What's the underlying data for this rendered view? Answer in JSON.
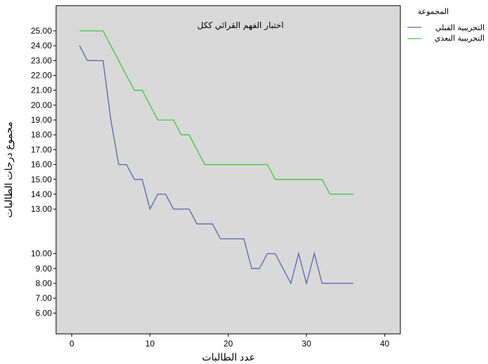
{
  "chart_data": {
    "type": "line",
    "title": "اختبار الفهم القرائي ككل",
    "xlabel": "عدد الطالبات",
    "ylabel": "مجموع درجات الطالبات",
    "xlim": [
      -2,
      42
    ],
    "ylim": [
      4.6,
      26.7
    ],
    "x_ticks": [
      0,
      10,
      20,
      30,
      40
    ],
    "y_ticks": [
      "25.00",
      "24.00",
      "23.00",
      "22.00",
      "21.00",
      "20.00",
      "19.00",
      "18.00",
      "17.00",
      "16.00",
      "15.00",
      "14.00",
      "13.00",
      "10.00",
      "9.00",
      "8.00",
      "7.00",
      "6.00"
    ],
    "legend_title": "المجموعة",
    "legend_position": "top-right",
    "grid": false,
    "series": [
      {
        "name": "التجريبية القبلي",
        "color": "#5765b0",
        "points": [
          [
            1,
            24
          ],
          [
            2,
            23
          ],
          [
            3,
            23
          ],
          [
            4,
            23
          ],
          [
            5,
            19
          ],
          [
            6,
            16
          ],
          [
            7,
            16
          ],
          [
            8,
            15
          ],
          [
            9,
            15
          ],
          [
            10,
            13
          ],
          [
            11,
            14
          ],
          [
            12,
            14
          ],
          [
            13,
            13
          ],
          [
            14,
            13
          ],
          [
            15,
            13
          ],
          [
            16,
            12
          ],
          [
            17,
            12
          ],
          [
            18,
            12
          ],
          [
            19,
            11
          ],
          [
            20,
            11
          ],
          [
            21,
            11
          ],
          [
            22,
            11
          ],
          [
            23,
            9
          ],
          [
            24,
            9
          ],
          [
            25,
            10
          ],
          [
            26,
            10
          ],
          [
            27,
            9
          ],
          [
            28,
            8
          ],
          [
            29,
            10
          ],
          [
            30,
            8
          ],
          [
            31,
            10
          ],
          [
            32,
            8
          ],
          [
            33,
            8
          ],
          [
            34,
            8
          ],
          [
            35,
            8
          ],
          [
            36,
            8
          ]
        ]
      },
      {
        "name": "التجريبية البعدي",
        "color": "#44c244",
        "points": [
          [
            1,
            25
          ],
          [
            2,
            25
          ],
          [
            3,
            25
          ],
          [
            4,
            25
          ],
          [
            5,
            24
          ],
          [
            6,
            23
          ],
          [
            7,
            22
          ],
          [
            8,
            21
          ],
          [
            9,
            21
          ],
          [
            10,
            20
          ],
          [
            11,
            19
          ],
          [
            12,
            19
          ],
          [
            13,
            19
          ],
          [
            14,
            18
          ],
          [
            15,
            18
          ],
          [
            16,
            17
          ],
          [
            17,
            16
          ],
          [
            18,
            16
          ],
          [
            19,
            16
          ],
          [
            20,
            16
          ],
          [
            21,
            16
          ],
          [
            22,
            16
          ],
          [
            23,
            16
          ],
          [
            24,
            16
          ],
          [
            25,
            16
          ],
          [
            26,
            15
          ],
          [
            27,
            15
          ],
          [
            28,
            15
          ],
          [
            29,
            15
          ],
          [
            30,
            15
          ],
          [
            31,
            15
          ],
          [
            32,
            15
          ],
          [
            33,
            14
          ],
          [
            34,
            14
          ],
          [
            35,
            14
          ],
          [
            36,
            14
          ]
        ]
      }
    ]
  }
}
